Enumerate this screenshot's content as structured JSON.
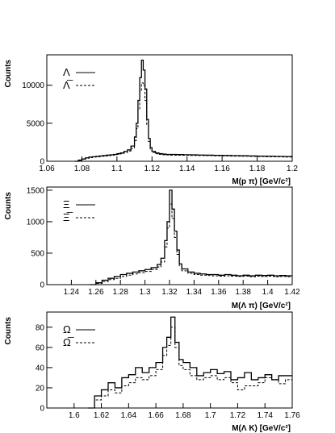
{
  "chart_data": [
    {
      "type": "line",
      "step": true,
      "ylabel": "Counts",
      "xlabel": "M(p π) [GeV/c²]",
      "xlim": [
        1.06,
        1.2
      ],
      "ylim": [
        0,
        14000
      ],
      "xticks": [
        "1.06",
        "1.08",
        "1.1",
        "1.12",
        "1.14",
        "1.16",
        "1.18",
        "1.2"
      ],
      "yticks": [
        "0",
        "5000",
        "10000"
      ],
      "legend": [
        "Λ",
        "Λ̅"
      ],
      "series": [
        {
          "name": "Λ",
          "style": "solid",
          "x": [
            1.076,
            1.078,
            1.08,
            1.082,
            1.084,
            1.086,
            1.088,
            1.09,
            1.092,
            1.094,
            1.096,
            1.098,
            1.1,
            1.102,
            1.104,
            1.106,
            1.108,
            1.11,
            1.111,
            1.112,
            1.113,
            1.114,
            1.115,
            1.116,
            1.117,
            1.118,
            1.119,
            1.12,
            1.122,
            1.124,
            1.126,
            1.128,
            1.13,
            1.134,
            1.138,
            1.142,
            1.146,
            1.15,
            1.155,
            1.16,
            1.165,
            1.17,
            1.175,
            1.18,
            1.185,
            1.19,
            1.195,
            1.2
          ],
          "y": [
            0,
            150,
            300,
            450,
            550,
            600,
            650,
            700,
            750,
            800,
            850,
            900,
            1000,
            1100,
            1300,
            1500,
            2000,
            3200,
            5000,
            8000,
            11000,
            13300,
            12000,
            9500,
            5500,
            3000,
            1800,
            1300,
            1100,
            1000,
            950,
            900,
            900,
            880,
            860,
            840,
            820,
            800,
            780,
            760,
            740,
            720,
            700,
            680,
            660,
            640,
            620,
            600
          ]
        },
        {
          "name": "Λ̅",
          "style": "dashed",
          "x": [
            1.076,
            1.078,
            1.08,
            1.082,
            1.084,
            1.086,
            1.088,
            1.09,
            1.092,
            1.094,
            1.096,
            1.098,
            1.1,
            1.102,
            1.104,
            1.106,
            1.108,
            1.11,
            1.111,
            1.112,
            1.113,
            1.114,
            1.115,
            1.116,
            1.117,
            1.118,
            1.119,
            1.12,
            1.122,
            1.124,
            1.126,
            1.128,
            1.13,
            1.134,
            1.138,
            1.142,
            1.146,
            1.15,
            1.155,
            1.16,
            1.165,
            1.17,
            1.175,
            1.18,
            1.185,
            1.19,
            1.195,
            1.2
          ],
          "y": [
            0,
            100,
            250,
            380,
            480,
            540,
            580,
            620,
            670,
            720,
            770,
            820,
            900,
            1000,
            1150,
            1350,
            1700,
            2700,
            4300,
            6800,
            9200,
            10300,
            10000,
            8000,
            4800,
            2600,
            1600,
            1150,
            1000,
            900,
            850,
            820,
            800,
            790,
            780,
            770,
            760,
            740,
            720,
            700,
            680,
            660,
            640,
            620,
            600,
            580,
            560,
            540
          ]
        }
      ]
    },
    {
      "type": "line",
      "step": true,
      "ylabel": "Counts",
      "xlabel": "M(Λ π) [GeV/c²]",
      "xlim": [
        1.22,
        1.42
      ],
      "ylim": [
        0,
        1550
      ],
      "xticks": [
        "1.24",
        "1.26",
        "1.28",
        "1.3",
        "1.32",
        "1.34",
        "1.36",
        "1.38",
        "1.4",
        "1.42"
      ],
      "yticks": [
        "0",
        "500",
        "1000",
        "1500"
      ],
      "legend": [
        "Ξ",
        "Ξ̅"
      ],
      "series": [
        {
          "name": "Ξ",
          "style": "solid",
          "x": [
            1.255,
            1.26,
            1.265,
            1.27,
            1.275,
            1.28,
            1.285,
            1.29,
            1.295,
            1.3,
            1.305,
            1.31,
            1.313,
            1.316,
            1.318,
            1.32,
            1.322,
            1.324,
            1.326,
            1.328,
            1.33,
            1.335,
            1.34,
            1.345,
            1.35,
            1.355,
            1.36,
            1.365,
            1.37,
            1.375,
            1.38,
            1.385,
            1.39,
            1.395,
            1.4,
            1.405,
            1.41,
            1.415
          ],
          "y": [
            0,
            30,
            70,
            100,
            130,
            160,
            180,
            200,
            220,
            240,
            270,
            320,
            420,
            700,
            1000,
            1500,
            1200,
            850,
            550,
            330,
            250,
            200,
            180,
            170,
            160,
            160,
            150,
            160,
            150,
            140,
            150,
            140,
            150,
            145,
            150,
            140,
            145,
            140
          ]
        },
        {
          "name": "Ξ̅",
          "style": "dashed",
          "x": [
            1.255,
            1.26,
            1.265,
            1.27,
            1.275,
            1.28,
            1.285,
            1.29,
            1.295,
            1.3,
            1.305,
            1.31,
            1.313,
            1.316,
            1.318,
            1.32,
            1.322,
            1.324,
            1.326,
            1.328,
            1.33,
            1.335,
            1.34,
            1.345,
            1.35,
            1.355,
            1.36,
            1.365,
            1.37,
            1.375,
            1.38,
            1.385,
            1.39,
            1.395,
            1.4,
            1.405,
            1.41,
            1.415
          ],
          "y": [
            0,
            20,
            50,
            80,
            100,
            130,
            150,
            170,
            190,
            210,
            240,
            280,
            360,
            600,
            900,
            1280,
            1050,
            750,
            480,
            300,
            220,
            180,
            160,
            150,
            145,
            140,
            135,
            140,
            135,
            130,
            135,
            125,
            135,
            130,
            135,
            125,
            130,
            125
          ]
        }
      ]
    },
    {
      "type": "line",
      "step": true,
      "ylabel": "Counts",
      "xlabel": "M(Λ K) [GeV/c²]",
      "xlim": [
        1.58,
        1.76
      ],
      "ylim": [
        0,
        95
      ],
      "xticks": [
        "1.6",
        "1.62",
        "1.64",
        "1.66",
        "1.68",
        "1.7",
        "1.72",
        "1.74",
        "1.76"
      ],
      "yticks": [
        "0",
        "20",
        "40",
        "60",
        "80"
      ],
      "legend": [
        "Ω",
        "Ω̅"
      ],
      "series": [
        {
          "name": "Ω",
          "style": "solid",
          "x": [
            1.61,
            1.615,
            1.62,
            1.625,
            1.63,
            1.635,
            1.64,
            1.645,
            1.65,
            1.655,
            1.66,
            1.665,
            1.668,
            1.671,
            1.674,
            1.677,
            1.68,
            1.685,
            1.69,
            1.695,
            1.7,
            1.705,
            1.71,
            1.715,
            1.72,
            1.725,
            1.73,
            1.735,
            1.74,
            1.745,
            1.75,
            1.755
          ],
          "y": [
            0,
            12,
            18,
            25,
            20,
            30,
            33,
            40,
            35,
            40,
            45,
            60,
            70,
            90,
            65,
            48,
            45,
            40,
            32,
            35,
            38,
            34,
            36,
            28,
            30,
            35,
            28,
            30,
            33,
            28,
            32,
            32
          ]
        },
        {
          "name": "Ω̅",
          "style": "dashed",
          "x": [
            1.61,
            1.615,
            1.62,
            1.625,
            1.63,
            1.635,
            1.64,
            1.645,
            1.65,
            1.655,
            1.66,
            1.665,
            1.668,
            1.671,
            1.674,
            1.677,
            1.68,
            1.685,
            1.69,
            1.695,
            1.7,
            1.705,
            1.71,
            1.715,
            1.72,
            1.725,
            1.73,
            1.735,
            1.74,
            1.745,
            1.75,
            1.755
          ],
          "y": [
            0,
            8,
            12,
            18,
            15,
            22,
            25,
            30,
            28,
            32,
            38,
            52,
            62,
            80,
            60,
            42,
            38,
            32,
            28,
            30,
            32,
            28,
            30,
            25,
            18,
            22,
            22,
            25,
            30,
            28,
            24,
            28
          ]
        }
      ]
    }
  ]
}
